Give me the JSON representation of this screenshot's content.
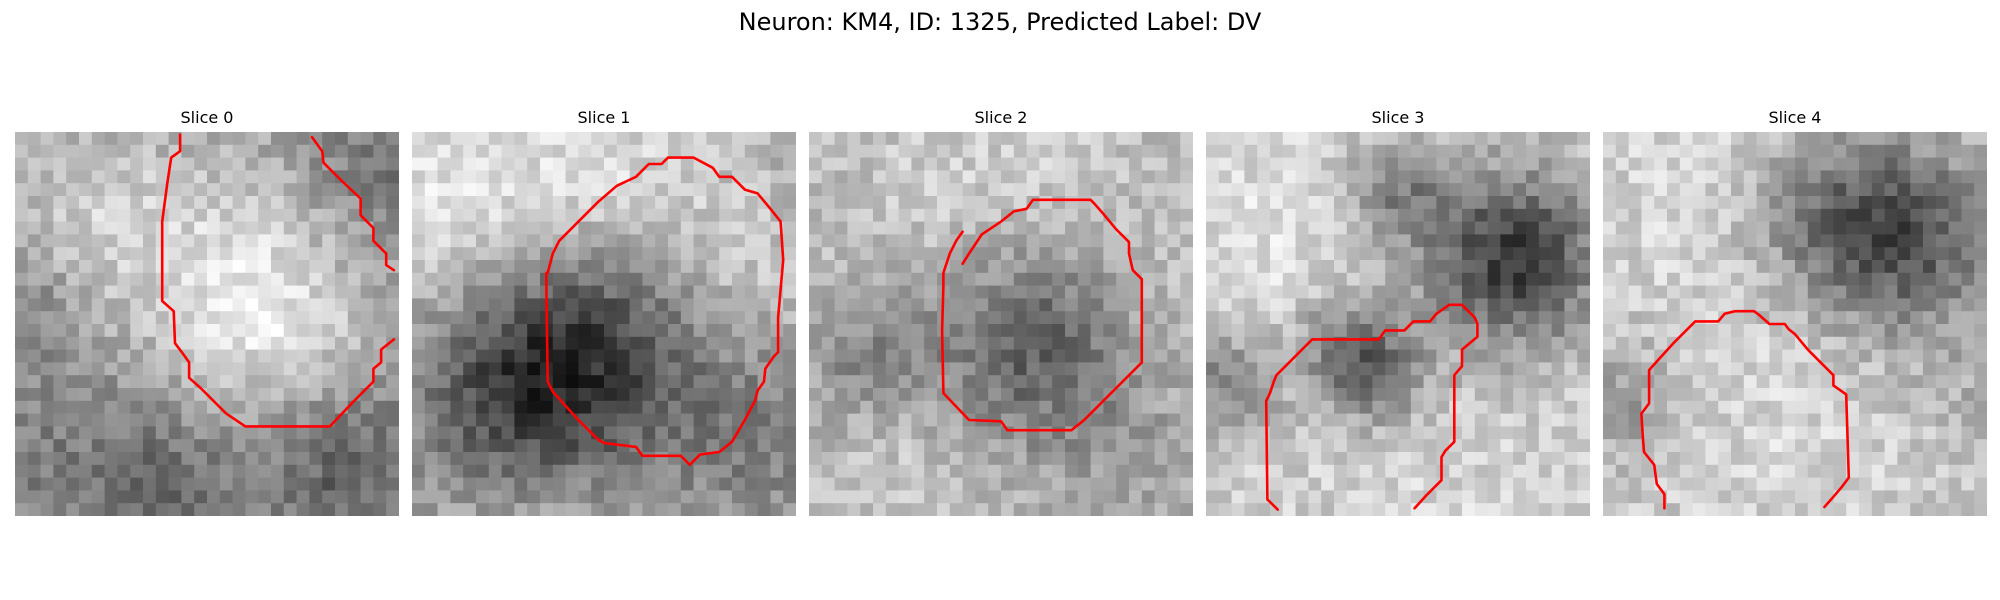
{
  "figure": {
    "title": "Neuron: KM4, ID: 1325, Predicted Label: DV"
  },
  "panels": [
    {
      "title": "Slice 0"
    },
    {
      "title": "Slice 1"
    },
    {
      "title": "Slice 2"
    },
    {
      "title": "Slice 3"
    },
    {
      "title": "Slice 4"
    }
  ],
  "colors": {
    "contour": "#ff0000",
    "background": "#ffffff",
    "image_colormap": "grayscale"
  }
}
